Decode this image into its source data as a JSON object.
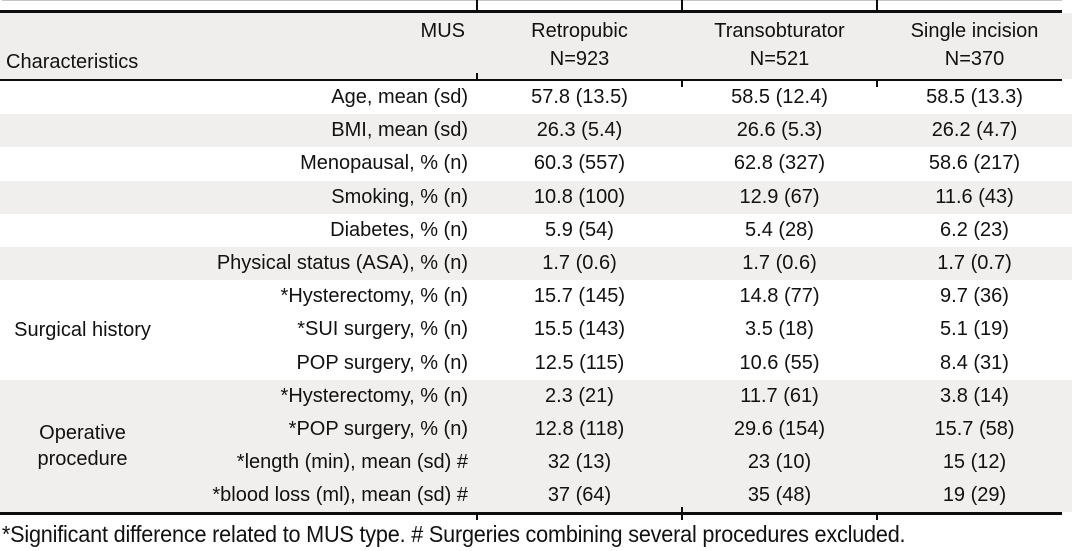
{
  "colors": {
    "shading": "#f0efee",
    "header_shading": "#efeeec",
    "border": "#0d0d0d"
  },
  "table": {
    "header": {
      "mus_label": "MUS",
      "characteristics_label": "Characteristics",
      "columns": [
        {
          "name": "Retropubic",
          "n": "N=923"
        },
        {
          "name": "Transobturator",
          "n": "N=521"
        },
        {
          "name": "Single incision",
          "n": "N=370"
        }
      ]
    },
    "simple_rows": [
      {
        "label": "Age, mean (sd)",
        "values": [
          "57.8 (13.5)",
          "58.5 (12.4)",
          "58.5 (13.3)"
        ]
      },
      {
        "label": "BMI, mean (sd)",
        "values": [
          "26.3 (5.4)",
          "26.6 (5.3)",
          "26.2 (4.7)"
        ]
      },
      {
        "label": "Menopausal, % (n)",
        "values": [
          "60.3 (557)",
          "62.8 (327)",
          "58.6 (217)"
        ]
      },
      {
        "label": "Smoking, % (n)",
        "values": [
          "10.8 (100)",
          "12.9 (67)",
          "11.6 (43)"
        ]
      },
      {
        "label": "Diabetes, % (n)",
        "values": [
          "5.9 (54)",
          "5.4 (28)",
          "6.2 (23)"
        ]
      },
      {
        "label": "Physical status (ASA), % (n)",
        "values": [
          "1.7 (0.6)",
          "1.7 (0.6)",
          "1.7 (0.7)"
        ]
      }
    ],
    "groups": [
      {
        "label": "Surgical history",
        "rows": [
          {
            "label": "*Hysterectomy, % (n)",
            "values": [
              "15.7 (145)",
              "14.8 (77)",
              "9.7 (36)"
            ]
          },
          {
            "label": "*SUI surgery, % (n)",
            "values": [
              "15.5 (143)",
              "3.5 (18)",
              "5.1 (19)"
            ]
          },
          {
            "label": "POP surgery, % (n)",
            "values": [
              "12.5 (115)",
              "10.6 (55)",
              "8.4 (31)"
            ]
          }
        ]
      },
      {
        "label": "Operative procedure",
        "rows": [
          {
            "label": "*Hysterectomy, % (n)",
            "values": [
              "2.3 (21)",
              "11.7 (61)",
              "3.8 (14)"
            ]
          },
          {
            "label": "*POP surgery, % (n)",
            "values": [
              "12.8 (118)",
              "29.6 (154)",
              "15.7 (58)"
            ]
          },
          {
            "label": "*length (min), mean (sd) #",
            "values": [
              "32 (13)",
              "23 (10)",
              "15 (12)"
            ]
          },
          {
            "label": "*blood loss (ml), mean (sd) #",
            "values": [
              "37 (64)",
              "35 (48)",
              "19 (29)"
            ]
          }
        ]
      }
    ],
    "footnote": "*Significant difference related to MUS type. # Surgeries combining several procedures excluded."
  }
}
